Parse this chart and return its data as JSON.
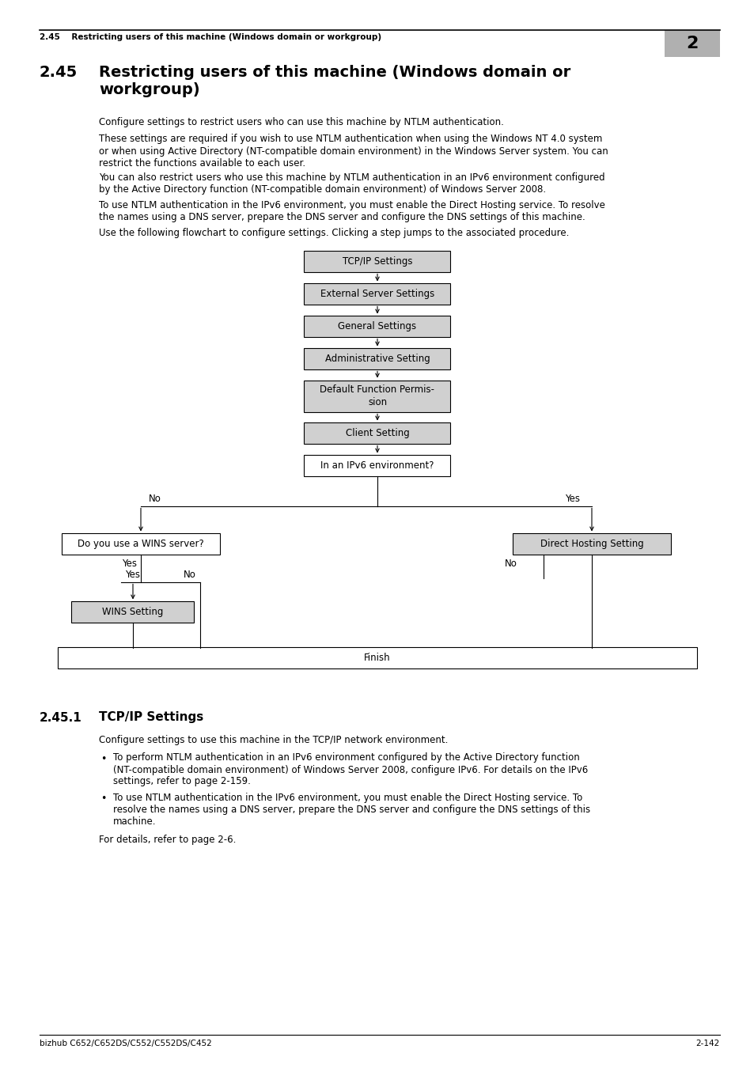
{
  "page_bg": "#ffffff",
  "header_section": "2.45    Restricting users of this machine (Windows domain or workgroup)",
  "header_num": "2",
  "header_num_bg": "#b0b0b0",
  "footer_left": "bizhub C652/C652DS/C552/C552DS/C452",
  "footer_right": "2-142",
  "title_num": "2.45",
  "title_text": "Restricting users of this machine (Windows domain or\nworkgroup)",
  "body_paragraphs": [
    "Configure settings to restrict users who can use this machine by NTLM authentication.",
    "These settings are required if you wish to use NTLM authentication when using the Windows NT 4.0 system\nor when using Active Directory (NT-compatible domain environment) in the Windows Server system. You can\nrestrict the functions available to each user.",
    "You can also restrict users who use this machine by NTLM authentication in an IPv6 environment configured\nby the Active Directory function (NT-compatible domain environment) of Windows Server 2008.",
    "To use NTLM authentication in the IPv6 environment, you must enable the Direct Hosting service. To resolve\nthe names using a DNS server, prepare the DNS server and configure the DNS settings of this machine.",
    "Use the following flowchart to configure settings. Clicking a step jumps to the associated procedure."
  ],
  "section_num": "2.45.1",
  "section_title": "TCP/IP Settings",
  "section_body": "Configure settings to use this machine in the TCP/IP network environment.",
  "bullets": [
    "To perform NTLM authentication in an IPv6 environment configured by the Active Directory function\n(NT-compatible domain environment) of Windows Server 2008, configure IPv6. For details on the IPv6\nsettings, refer to page 2-159.",
    "To use NTLM authentication in the IPv6 environment, you must enable the Direct Hosting service. To\nresolve the names using a DNS server, prepare the DNS server and configure the DNS settings of this\nmachine."
  ],
  "details_ref": "For details, refer to page 2-6.",
  "box_gray": "#d0d0d0",
  "box_white": "#ffffff",
  "box_border": "#000000",
  "line_color": "#000000"
}
